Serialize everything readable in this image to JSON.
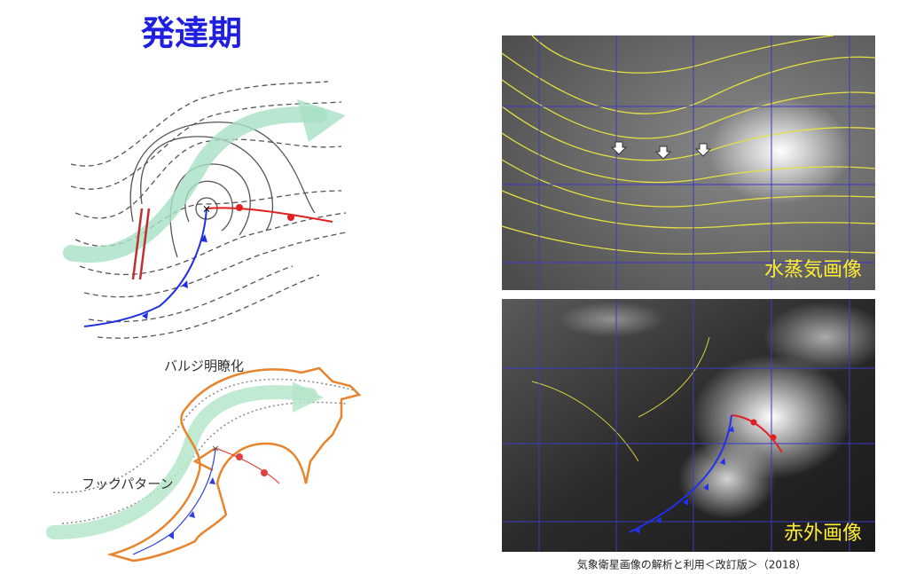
{
  "title": "発達期",
  "diagram_labels": {
    "bulge": "バルジ明瞭化",
    "hook": "フックパターン"
  },
  "images": [
    {
      "label": "水蒸気画像"
    },
    {
      "label": "赤外画像"
    }
  ],
  "caption": "気象衛星画像の解析と利用＜改訂版＞（2018）"
}
